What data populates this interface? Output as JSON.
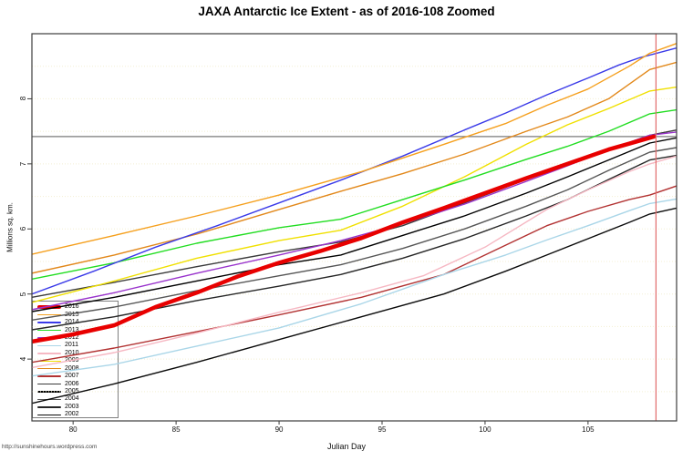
{
  "watermark": "http://sunshinehours.wordpress.com",
  "chart_data": {
    "type": "line",
    "title": "JAXA Antarctic Ice Extent - as of 2016-108 Zoomed",
    "xlabel": "Julian Day",
    "ylabel": "Millions sq. km.",
    "xlim": [
      78,
      109.3
    ],
    "ylim": [
      3.05,
      9.0
    ],
    "xticks": [
      80,
      85,
      90,
      95,
      100,
      105
    ],
    "yticks": [
      4,
      5,
      6,
      7,
      8
    ],
    "grid": {
      "orientation": "horizontal",
      "step": 0.5,
      "color": "#f4efd3",
      "style": "dotted"
    },
    "legend_position": "bottom-left",
    "reference_lines": {
      "vertical_day": {
        "x": 108.3,
        "color": "#e06c6c"
      },
      "horizontal_extent": {
        "y": 7.42,
        "color": "#7a7a7a"
      }
    },
    "series": [
      {
        "name": "2016",
        "color": "#e80000",
        "width": 4.5,
        "points": [
          [
            78,
            4.27
          ],
          [
            80,
            4.38
          ],
          [
            82,
            4.52
          ],
          [
            84,
            4.8
          ],
          [
            86,
            5.02
          ],
          [
            88,
            5.27
          ],
          [
            90,
            5.48
          ],
          [
            92,
            5.66
          ],
          [
            94,
            5.86
          ],
          [
            96,
            6.1
          ],
          [
            98,
            6.32
          ],
          [
            100,
            6.55
          ],
          [
            102,
            6.78
          ],
          [
            104,
            7.0
          ],
          [
            106,
            7.22
          ],
          [
            107,
            7.31
          ],
          [
            108.2,
            7.42
          ]
        ]
      },
      {
        "name": "2015",
        "color": "#f5a01e",
        "width": 1.4,
        "points": [
          [
            78,
            5.61
          ],
          [
            82,
            5.9
          ],
          [
            86,
            6.2
          ],
          [
            90,
            6.52
          ],
          [
            94,
            6.88
          ],
          [
            98,
            7.3
          ],
          [
            101,
            7.62
          ],
          [
            103,
            7.9
          ],
          [
            105,
            8.15
          ],
          [
            107,
            8.5
          ],
          [
            108,
            8.7
          ],
          [
            109.3,
            8.85
          ]
        ]
      },
      {
        "name": "2014",
        "color": "#3a3ae8",
        "width": 1.4,
        "points": [
          [
            78,
            5.0
          ],
          [
            81,
            5.35
          ],
          [
            84,
            5.72
          ],
          [
            87,
            6.05
          ],
          [
            90,
            6.4
          ],
          [
            93,
            6.75
          ],
          [
            96,
            7.12
          ],
          [
            99,
            7.52
          ],
          [
            101,
            7.78
          ],
          [
            103,
            8.06
          ],
          [
            105,
            8.32
          ],
          [
            106.5,
            8.52
          ],
          [
            107.5,
            8.63
          ],
          [
            109.3,
            8.78
          ]
        ]
      },
      {
        "name": "2013",
        "color": "#21dd21",
        "width": 1.4,
        "points": [
          [
            78,
            5.23
          ],
          [
            82,
            5.48
          ],
          [
            86,
            5.78
          ],
          [
            90,
            6.02
          ],
          [
            93,
            6.15
          ],
          [
            96,
            6.45
          ],
          [
            99,
            6.75
          ],
          [
            102,
            7.07
          ],
          [
            104,
            7.27
          ],
          [
            106,
            7.5
          ],
          [
            108,
            7.77
          ],
          [
            109.3,
            7.83
          ]
        ]
      },
      {
        "name": "2012",
        "color": "#9933cc",
        "width": 1.4,
        "points": [
          [
            78,
            4.76
          ],
          [
            82,
            5.02
          ],
          [
            86,
            5.32
          ],
          [
            90,
            5.6
          ],
          [
            93,
            5.82
          ],
          [
            96,
            6.08
          ],
          [
            99,
            6.38
          ],
          [
            102,
            6.73
          ],
          [
            104,
            6.97
          ],
          [
            106,
            7.22
          ],
          [
            108,
            7.44
          ],
          [
            109.3,
            7.49
          ]
        ]
      },
      {
        "name": "2011",
        "color": "#aad6e8",
        "width": 1.4,
        "points": [
          [
            78,
            3.74
          ],
          [
            82,
            3.92
          ],
          [
            86,
            4.2
          ],
          [
            90,
            4.48
          ],
          [
            94,
            4.85
          ],
          [
            98,
            5.3
          ],
          [
            101,
            5.6
          ],
          [
            103,
            5.83
          ],
          [
            105,
            6.05
          ],
          [
            107,
            6.28
          ],
          [
            108,
            6.39
          ],
          [
            109.3,
            6.46
          ]
        ]
      },
      {
        "name": "2010",
        "color": "#f6b8c3",
        "width": 1.4,
        "points": [
          [
            78,
            3.87
          ],
          [
            82,
            4.1
          ],
          [
            86,
            4.4
          ],
          [
            90,
            4.72
          ],
          [
            94,
            5.02
          ],
          [
            97,
            5.28
          ],
          [
            100,
            5.72
          ],
          [
            103,
            6.3
          ],
          [
            105,
            6.6
          ],
          [
            107,
            6.88
          ],
          [
            108,
            7.0
          ],
          [
            109.3,
            7.12
          ]
        ]
      },
      {
        "name": "2009",
        "color": "#f0e000",
        "width": 1.4,
        "points": [
          [
            78,
            4.87
          ],
          [
            82,
            5.2
          ],
          [
            86,
            5.55
          ],
          [
            90,
            5.82
          ],
          [
            93,
            5.98
          ],
          [
            96,
            6.35
          ],
          [
            99,
            6.8
          ],
          [
            102,
            7.3
          ],
          [
            104,
            7.6
          ],
          [
            106,
            7.85
          ],
          [
            108,
            8.12
          ],
          [
            109.3,
            8.18
          ]
        ]
      },
      {
        "name": "2008",
        "color": "#e2881a",
        "width": 1.4,
        "points": [
          [
            78,
            5.32
          ],
          [
            82,
            5.6
          ],
          [
            86,
            5.92
          ],
          [
            90,
            6.3
          ],
          [
            93,
            6.58
          ],
          [
            96,
            6.85
          ],
          [
            99,
            7.15
          ],
          [
            102,
            7.5
          ],
          [
            104,
            7.72
          ],
          [
            106,
            8.0
          ],
          [
            108,
            8.45
          ],
          [
            109.3,
            8.56
          ]
        ]
      },
      {
        "name": "2007",
        "color": "#b23232",
        "width": 1.4,
        "points": [
          [
            78,
            3.95
          ],
          [
            82,
            4.17
          ],
          [
            86,
            4.42
          ],
          [
            90,
            4.68
          ],
          [
            94,
            4.95
          ],
          [
            98,
            5.3
          ],
          [
            101,
            5.75
          ],
          [
            103,
            6.05
          ],
          [
            105,
            6.27
          ],
          [
            107,
            6.45
          ],
          [
            108,
            6.52
          ],
          [
            109.3,
            6.66
          ]
        ]
      },
      {
        "name": "2006",
        "color": "#3a3a3a",
        "width": 1.4,
        "points": [
          [
            78,
            4.95
          ],
          [
            82,
            5.18
          ],
          [
            86,
            5.42
          ],
          [
            90,
            5.65
          ],
          [
            93,
            5.8
          ],
          [
            96,
            6.05
          ],
          [
            99,
            6.4
          ],
          [
            102,
            6.76
          ],
          [
            104,
            7.0
          ],
          [
            106,
            7.22
          ],
          [
            108,
            7.44
          ],
          [
            109.3,
            7.52
          ]
        ]
      },
      {
        "name": "2005",
        "color": "#000000",
        "width": 1.4,
        "points": [
          [
            78,
            4.73
          ],
          [
            82,
            4.95
          ],
          [
            86,
            5.2
          ],
          [
            90,
            5.45
          ],
          [
            93,
            5.6
          ],
          [
            96,
            5.9
          ],
          [
            99,
            6.2
          ],
          [
            102,
            6.55
          ],
          [
            104,
            6.8
          ],
          [
            106,
            7.06
          ],
          [
            108,
            7.32
          ],
          [
            109.3,
            7.4
          ]
        ]
      },
      {
        "name": "2004",
        "color": "#565656",
        "width": 1.4,
        "points": [
          [
            78,
            4.6
          ],
          [
            82,
            4.8
          ],
          [
            86,
            5.05
          ],
          [
            90,
            5.28
          ],
          [
            93,
            5.45
          ],
          [
            96,
            5.7
          ],
          [
            99,
            6.0
          ],
          [
            102,
            6.35
          ],
          [
            104,
            6.6
          ],
          [
            106,
            6.9
          ],
          [
            108,
            7.18
          ],
          [
            109.3,
            7.25
          ]
        ]
      },
      {
        "name": "2003",
        "color": "#262626",
        "width": 1.4,
        "points": [
          [
            78,
            4.45
          ],
          [
            82,
            4.65
          ],
          [
            86,
            4.9
          ],
          [
            90,
            5.12
          ],
          [
            93,
            5.3
          ],
          [
            96,
            5.55
          ],
          [
            99,
            5.85
          ],
          [
            102,
            6.2
          ],
          [
            104,
            6.45
          ],
          [
            106,
            6.76
          ],
          [
            108,
            7.06
          ],
          [
            109.3,
            7.13
          ]
        ]
      },
      {
        "name": "2002",
        "color": "#0a0a0a",
        "width": 1.4,
        "points": [
          [
            78,
            3.32
          ],
          [
            82,
            3.62
          ],
          [
            86,
            3.95
          ],
          [
            90,
            4.3
          ],
          [
            94,
            4.65
          ],
          [
            98,
            5.0
          ],
          [
            101,
            5.35
          ],
          [
            103,
            5.6
          ],
          [
            105,
            5.85
          ],
          [
            107,
            6.1
          ],
          [
            108,
            6.23
          ],
          [
            109.3,
            6.32
          ]
        ]
      }
    ]
  }
}
